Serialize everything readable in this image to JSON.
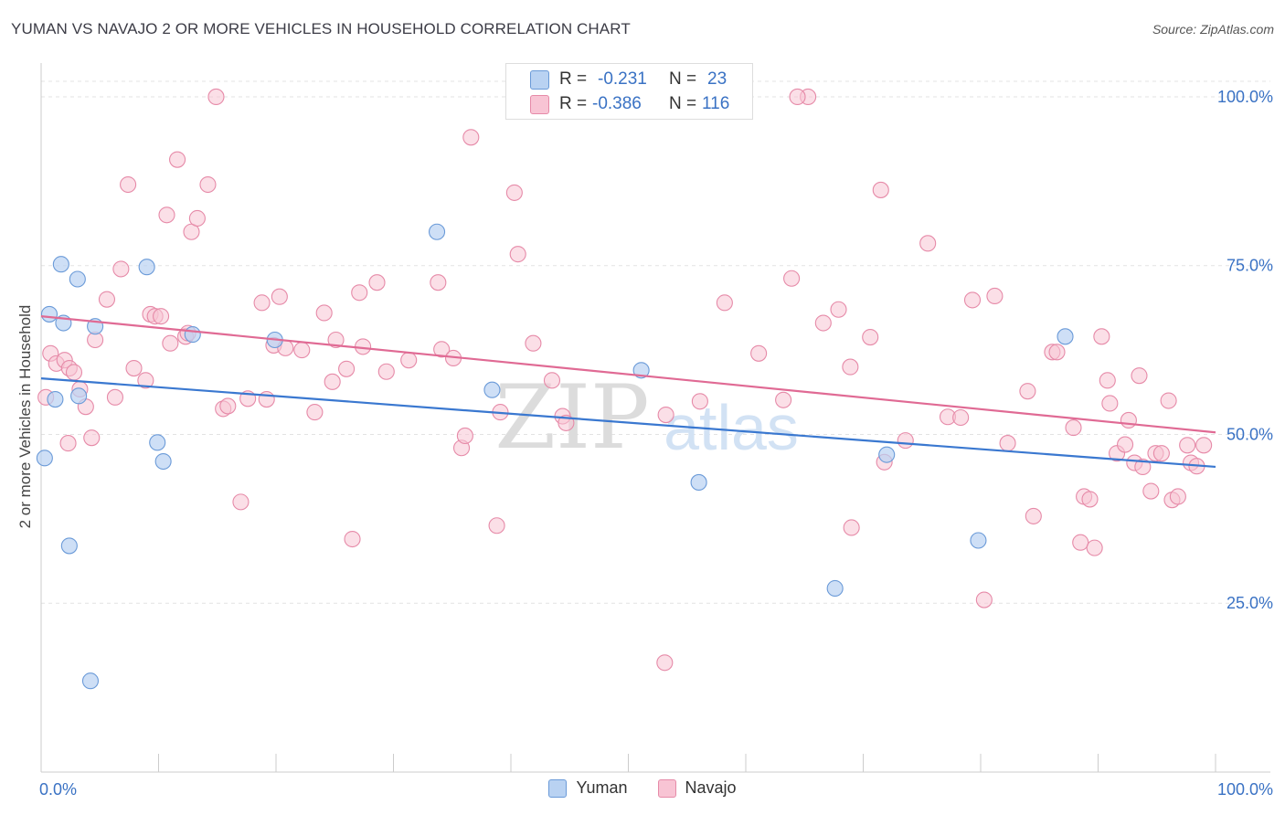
{
  "title": "YUMAN VS NAVAJO 2 OR MORE VEHICLES IN HOUSEHOLD CORRELATION CHART",
  "source": "Source: ZipAtlas.com",
  "watermark": {
    "zip": "ZIP",
    "atlas": "atlas"
  },
  "colors": {
    "yuman_fill": "#b9d2f2",
    "yuman_stroke": "#6a9ad8",
    "yuman_line": "#3a78d0",
    "navajo_fill": "#f8c4d4",
    "navajo_stroke": "#e68aa8",
    "navajo_line": "#e06a94",
    "tick_label": "#3a72c4",
    "grid": "#e3e3e3"
  },
  "stats": {
    "yuman": {
      "r_label": "R =",
      "r_value": "-0.231",
      "n_label": "N =",
      "n_value": "23"
    },
    "navajo": {
      "r_label": "R =",
      "r_value": "-0.386",
      "n_label": "N =",
      "n_value": "116"
    }
  },
  "legend": {
    "yuman": "Yuman",
    "navajo": "Navajo"
  },
  "chart_data": {
    "type": "scatter",
    "title": "YUMAN VS NAVAJO 2 OR MORE VEHICLES IN HOUSEHOLD CORRELATION CHART",
    "xlabel": "",
    "ylabel": "2 or more Vehicles in Household",
    "xlim": [
      0,
      100
    ],
    "ylim": [
      0,
      105
    ],
    "x_tick_labels": [
      "0.0%",
      "100.0%"
    ],
    "y_ticks": [
      25,
      50,
      75,
      100
    ],
    "y_tick_labels": [
      "25.0%",
      "50.0%",
      "75.0%",
      "100.0%"
    ],
    "grid": true,
    "legend_position": "bottom",
    "series": [
      {
        "name": "Yuman",
        "points": [
          [
            0.3,
            46.5
          ],
          [
            0.7,
            67.8
          ],
          [
            1.2,
            55.2
          ],
          [
            1.7,
            75.2
          ],
          [
            1.9,
            66.5
          ],
          [
            2.4,
            33.5
          ],
          [
            3.1,
            73.0
          ],
          [
            3.2,
            55.7
          ],
          [
            4.2,
            13.5
          ],
          [
            4.6,
            66.0
          ],
          [
            9.0,
            74.8
          ],
          [
            9.9,
            48.8
          ],
          [
            10.4,
            46.0
          ],
          [
            12.9,
            64.8
          ],
          [
            19.9,
            64.0
          ],
          [
            33.7,
            80.0
          ],
          [
            38.4,
            56.6
          ],
          [
            51.1,
            59.5
          ],
          [
            56.0,
            42.9
          ],
          [
            67.6,
            27.2
          ],
          [
            72.0,
            47.0
          ],
          [
            79.8,
            34.3
          ],
          [
            87.2,
            64.5
          ]
        ],
        "trend": [
          [
            0,
            58.3
          ],
          [
            100,
            45.2
          ]
        ]
      },
      {
        "name": "Navajo",
        "points": [
          [
            0.4,
            55.5
          ],
          [
            0.8,
            62.0
          ],
          [
            1.3,
            60.5
          ],
          [
            2.0,
            61.0
          ],
          [
            2.3,
            48.7
          ],
          [
            2.4,
            59.8
          ],
          [
            2.8,
            59.2
          ],
          [
            3.3,
            56.7
          ],
          [
            3.8,
            54.1
          ],
          [
            4.3,
            49.5
          ],
          [
            4.6,
            64.0
          ],
          [
            5.6,
            70.0
          ],
          [
            6.3,
            55.5
          ],
          [
            6.8,
            74.5
          ],
          [
            7.4,
            87.0
          ],
          [
            7.9,
            59.8
          ],
          [
            8.9,
            58.0
          ],
          [
            9.3,
            67.8
          ],
          [
            9.7,
            67.5
          ],
          [
            10.2,
            67.5
          ],
          [
            10.7,
            82.5
          ],
          [
            11.0,
            63.5
          ],
          [
            11.6,
            90.7
          ],
          [
            12.3,
            64.5
          ],
          [
            12.8,
            80.0
          ],
          [
            13.3,
            82.0
          ],
          [
            14.2,
            87.0
          ],
          [
            14.9,
            100.0
          ],
          [
            15.5,
            53.8
          ],
          [
            15.9,
            54.2
          ],
          [
            17.0,
            40.0
          ],
          [
            17.6,
            55.3
          ],
          [
            18.8,
            69.5
          ],
          [
            19.2,
            55.2
          ],
          [
            19.8,
            63.2
          ],
          [
            20.3,
            70.4
          ],
          [
            20.8,
            62.8
          ],
          [
            22.2,
            62.5
          ],
          [
            23.3,
            53.3
          ],
          [
            24.1,
            68.0
          ],
          [
            24.8,
            57.8
          ],
          [
            25.1,
            64.0
          ],
          [
            26.0,
            59.7
          ],
          [
            26.5,
            34.5
          ],
          [
            27.1,
            71.0
          ],
          [
            27.4,
            63.0
          ],
          [
            28.6,
            72.5
          ],
          [
            29.4,
            59.3
          ],
          [
            31.3,
            61.0
          ],
          [
            33.8,
            72.5
          ],
          [
            34.1,
            62.6
          ],
          [
            35.1,
            61.3
          ],
          [
            35.8,
            48.0
          ],
          [
            36.1,
            49.8
          ],
          [
            36.6,
            94.0
          ],
          [
            38.8,
            36.5
          ],
          [
            39.1,
            53.3
          ],
          [
            40.3,
            85.8
          ],
          [
            40.6,
            76.7
          ],
          [
            41.9,
            63.5
          ],
          [
            43.5,
            58.0
          ],
          [
            44.4,
            52.7
          ],
          [
            44.7,
            51.7
          ],
          [
            53.2,
            52.9
          ],
          [
            56.1,
            54.9
          ],
          [
            58.2,
            69.5
          ],
          [
            61.1,
            62.0
          ],
          [
            63.2,
            55.1
          ],
          [
            63.9,
            73.1
          ],
          [
            66.6,
            66.5
          ],
          [
            67.9,
            68.5
          ],
          [
            68.9,
            60.0
          ],
          [
            69.0,
            36.2
          ],
          [
            70.6,
            64.4
          ],
          [
            71.5,
            86.2
          ],
          [
            71.8,
            45.9
          ],
          [
            73.6,
            49.1
          ],
          [
            75.5,
            78.3
          ],
          [
            77.2,
            52.6
          ],
          [
            78.3,
            52.5
          ],
          [
            79.3,
            69.9
          ],
          [
            81.2,
            70.5
          ],
          [
            80.3,
            25.5
          ],
          [
            82.3,
            48.7
          ],
          [
            84.0,
            56.4
          ],
          [
            84.5,
            37.9
          ],
          [
            86.1,
            62.2
          ],
          [
            86.5,
            62.2
          ],
          [
            87.9,
            51.0
          ],
          [
            88.5,
            34.0
          ],
          [
            88.8,
            40.8
          ],
          [
            89.3,
            40.4
          ],
          [
            89.7,
            33.2
          ],
          [
            90.3,
            64.5
          ],
          [
            90.8,
            58.0
          ],
          [
            91.0,
            54.6
          ],
          [
            91.6,
            47.2
          ],
          [
            92.3,
            48.5
          ],
          [
            92.6,
            52.1
          ],
          [
            93.1,
            45.8
          ],
          [
            93.5,
            58.7
          ],
          [
            93.8,
            45.2
          ],
          [
            94.5,
            41.6
          ],
          [
            94.9,
            47.2
          ],
          [
            95.4,
            47.2
          ],
          [
            96.0,
            55.0
          ],
          [
            96.3,
            40.3
          ],
          [
            96.8,
            40.8
          ],
          [
            97.6,
            48.4
          ],
          [
            97.9,
            45.8
          ],
          [
            98.4,
            45.3
          ],
          [
            99.0,
            48.4
          ],
          [
            65.3,
            100.0
          ],
          [
            64.4,
            100.0
          ],
          [
            53.1,
            16.2
          ],
          [
            12.5,
            65.0
          ]
        ],
        "trend": [
          [
            0,
            67.5
          ],
          [
            100,
            50.3
          ]
        ]
      }
    ]
  }
}
